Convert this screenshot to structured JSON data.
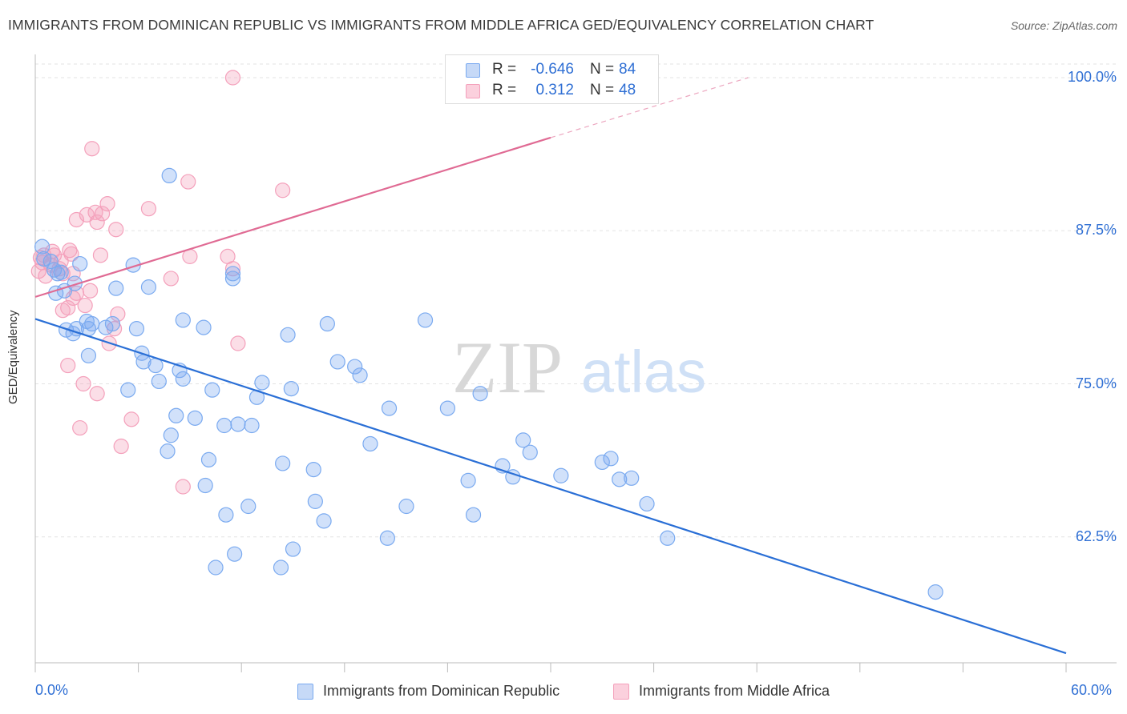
{
  "title": "IMMIGRANTS FROM DOMINICAN REPUBLIC VS IMMIGRANTS FROM MIDDLE AFRICA GED/EQUIVALENCY CORRELATION CHART",
  "source": "Source: ZipAtlas.com",
  "watermark": {
    "zip": "ZIP",
    "atlas": "atlas"
  },
  "colors": {
    "blue": "#7aaaf0",
    "blue_line": "#2a6fd6",
    "pink": "#f4a0bb",
    "pink_line": "#e06b94",
    "tick_label": "#2f6fd4"
  },
  "legend_top": {
    "rows": [
      {
        "r_label": "R =",
        "r_value": "-0.646",
        "n_label": "N =",
        "n_value": "84"
      },
      {
        "r_label": "R =",
        "r_value": "0.312",
        "n_label": "N =",
        "n_value": "48"
      }
    ]
  },
  "legend_bottom": {
    "items": [
      {
        "label": "Immigrants from Dominican Republic"
      },
      {
        "label": "Immigrants from Middle Africa"
      }
    ]
  },
  "chart_data": {
    "type": "scatter",
    "title": "IMMIGRANTS FROM DOMINICAN REPUBLIC VS IMMIGRANTS FROM MIDDLE AFRICA GED/EQUIVALENCY CORRELATION CHART",
    "xlabel": "",
    "ylabel": "GED/Equivalency",
    "xlim": [
      0,
      60
    ],
    "ylim": [
      51.5,
      102
    ],
    "x_tick_labels": [
      "0.0%",
      "60.0%"
    ],
    "y_ticks": [
      62.5,
      75.0,
      87.5,
      100.0
    ],
    "y_tick_labels": [
      "62.5%",
      "75.0%",
      "87.5%",
      "100.0%"
    ],
    "grid": true,
    "series": [
      {
        "name": "Immigrants from Dominican Republic",
        "r": -0.646,
        "n": 84,
        "trend": {
          "x": [
            0,
            60
          ],
          "y": [
            80.3,
            53.0
          ]
        },
        "points": [
          [
            0.4,
            86.2
          ],
          [
            0.5,
            85.2
          ],
          [
            0.9,
            85.0
          ],
          [
            1.1,
            84.3
          ],
          [
            1.3,
            84.0
          ],
          [
            1.2,
            82.4
          ],
          [
            1.7,
            82.6
          ],
          [
            2.3,
            83.2
          ],
          [
            2.6,
            84.8
          ],
          [
            5.7,
            84.7
          ],
          [
            2.4,
            79.5
          ],
          [
            3.1,
            79.5
          ],
          [
            3.3,
            79.9
          ],
          [
            1.8,
            79.4
          ],
          [
            2.2,
            79.1
          ],
          [
            4.1,
            79.6
          ],
          [
            4.5,
            79.9
          ],
          [
            5.9,
            79.5
          ],
          [
            6.6,
            82.9
          ],
          [
            4.7,
            82.8
          ],
          [
            8.6,
            80.2
          ],
          [
            9.8,
            79.6
          ],
          [
            7.8,
            92.0
          ],
          [
            11.5,
            83.6
          ],
          [
            11.5,
            84.0
          ],
          [
            14.7,
            79.0
          ],
          [
            17.0,
            79.9
          ],
          [
            22.7,
            80.2
          ],
          [
            3.1,
            77.3
          ],
          [
            6.2,
            77.5
          ],
          [
            6.3,
            76.8
          ],
          [
            7.0,
            76.5
          ],
          [
            8.4,
            76.1
          ],
          [
            8.6,
            75.4
          ],
          [
            7.2,
            75.2
          ],
          [
            5.4,
            74.5
          ],
          [
            10.3,
            74.5
          ],
          [
            13.2,
            75.1
          ],
          [
            14.9,
            74.6
          ],
          [
            12.9,
            73.9
          ],
          [
            17.6,
            76.8
          ],
          [
            18.6,
            76.4
          ],
          [
            18.9,
            75.7
          ],
          [
            20.6,
            73.0
          ],
          [
            24.0,
            73.0
          ],
          [
            25.9,
            74.2
          ],
          [
            8.2,
            72.4
          ],
          [
            9.3,
            72.2
          ],
          [
            11.0,
            71.6
          ],
          [
            11.8,
            71.7
          ],
          [
            12.6,
            71.6
          ],
          [
            7.9,
            70.8
          ],
          [
            7.7,
            69.5
          ],
          [
            19.5,
            70.1
          ],
          [
            28.4,
            70.4
          ],
          [
            10.1,
            68.8
          ],
          [
            14.4,
            68.5
          ],
          [
            16.2,
            68.0
          ],
          [
            27.2,
            68.3
          ],
          [
            28.8,
            69.4
          ],
          [
            30.6,
            67.5
          ],
          [
            27.8,
            67.4
          ],
          [
            25.2,
            67.1
          ],
          [
            33.0,
            68.6
          ],
          [
            33.5,
            68.9
          ],
          [
            34.7,
            67.3
          ],
          [
            9.9,
            66.7
          ],
          [
            16.3,
            65.4
          ],
          [
            12.4,
            65.0
          ],
          [
            21.6,
            65.0
          ],
          [
            11.1,
            64.3
          ],
          [
            25.5,
            64.3
          ],
          [
            16.8,
            63.8
          ],
          [
            35.6,
            65.2
          ],
          [
            20.5,
            62.4
          ],
          [
            36.8,
            62.4
          ],
          [
            15.0,
            61.5
          ],
          [
            11.6,
            61.1
          ],
          [
            10.5,
            60.0
          ],
          [
            14.3,
            60.0
          ],
          [
            52.4,
            58.0
          ],
          [
            34.0,
            67.2
          ],
          [
            1.5,
            84.1
          ],
          [
            3.0,
            80.1
          ]
        ]
      },
      {
        "name": "Immigrants from Middle Africa",
        "r": 0.312,
        "n": 48,
        "trend": {
          "x": [
            0,
            30
          ],
          "y": [
            82.1,
            95.1
          ]
        },
        "trend_dashed": {
          "x": [
            30,
            41.5
          ],
          "y": [
            95.1,
            100.0
          ]
        },
        "points": [
          [
            11.5,
            100.0
          ],
          [
            3.3,
            94.2
          ],
          [
            8.9,
            91.5
          ],
          [
            14.4,
            90.8
          ],
          [
            4.2,
            89.7
          ],
          [
            6.6,
            89.3
          ],
          [
            3.5,
            89.0
          ],
          [
            3.9,
            88.9
          ],
          [
            3.0,
            88.8
          ],
          [
            2.4,
            88.4
          ],
          [
            3.6,
            88.2
          ],
          [
            4.7,
            87.6
          ],
          [
            0.3,
            85.3
          ],
          [
            0.5,
            85.5
          ],
          [
            1.1,
            85.5
          ],
          [
            1.5,
            85.0
          ],
          [
            0.9,
            84.7
          ],
          [
            1.4,
            84.4
          ],
          [
            0.2,
            84.2
          ],
          [
            0.6,
            83.8
          ],
          [
            1.6,
            84.0
          ],
          [
            2.0,
            85.9
          ],
          [
            2.1,
            85.6
          ],
          [
            3.8,
            85.5
          ],
          [
            9.0,
            85.4
          ],
          [
            11.2,
            85.4
          ],
          [
            11.5,
            84.4
          ],
          [
            2.2,
            84.0
          ],
          [
            7.9,
            83.6
          ],
          [
            2.4,
            82.4
          ],
          [
            3.2,
            82.6
          ],
          [
            2.2,
            82.0
          ],
          [
            1.9,
            81.2
          ],
          [
            2.9,
            81.4
          ],
          [
            1.6,
            81.0
          ],
          [
            4.8,
            80.7
          ],
          [
            4.6,
            79.5
          ],
          [
            4.3,
            78.3
          ],
          [
            11.8,
            78.3
          ],
          [
            1.9,
            76.5
          ],
          [
            2.8,
            75.0
          ],
          [
            3.6,
            74.2
          ],
          [
            5.6,
            72.1
          ],
          [
            2.6,
            71.4
          ],
          [
            5.0,
            69.9
          ],
          [
            8.6,
            66.6
          ],
          [
            0.4,
            84.9
          ],
          [
            1.0,
            85.8
          ]
        ]
      }
    ]
  }
}
